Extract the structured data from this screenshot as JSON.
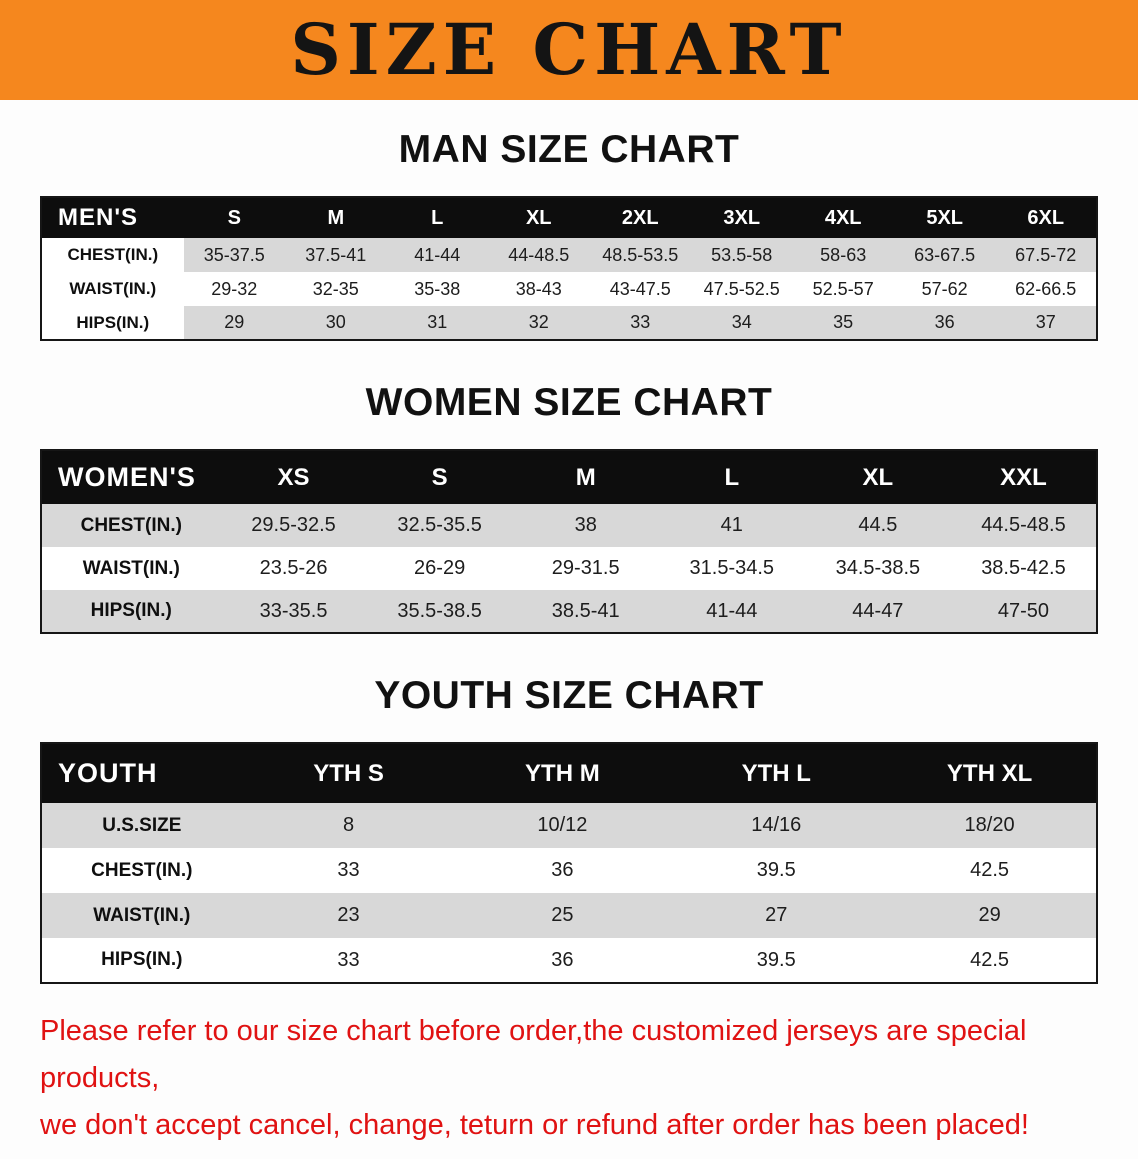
{
  "banner": {
    "title": "SIZE CHART",
    "bg_color": "#F5871E",
    "text_color": "#141414"
  },
  "sections": [
    {
      "id": "men",
      "heading": "MAN SIZE CHART",
      "header": [
        "MEN'S",
        "S",
        "M",
        "L",
        "XL",
        "2XL",
        "3XL",
        "4XL",
        "5XL",
        "6XL"
      ],
      "rows": [
        [
          "CHEST(IN.)",
          "35-37.5",
          "37.5-41",
          "41-44",
          "44-48.5",
          "48.5-53.5",
          "53.5-58",
          "58-63",
          "63-67.5",
          "67.5-72"
        ],
        [
          "WAIST(IN.)",
          "29-32",
          "32-35",
          "35-38",
          "38-43",
          "43-47.5",
          "47.5-52.5",
          "52.5-57",
          "57-62",
          "62-66.5"
        ],
        [
          "HIPS(IN.)",
          "29",
          "30",
          "31",
          "32",
          "33",
          "34",
          "35",
          "36",
          "37"
        ]
      ]
    },
    {
      "id": "women",
      "heading": "WOMEN SIZE CHART",
      "header": [
        "WOMEN'S",
        "XS",
        "S",
        "M",
        "L",
        "XL",
        "XXL"
      ],
      "rows": [
        [
          "CHEST(IN.)",
          "29.5-32.5",
          "32.5-35.5",
          "38",
          "41",
          "44.5",
          "44.5-48.5"
        ],
        [
          "WAIST(IN.)",
          "23.5-26",
          "26-29",
          "29-31.5",
          "31.5-34.5",
          "34.5-38.5",
          "38.5-42.5"
        ],
        [
          "HIPS(IN.)",
          "33-35.5",
          "35.5-38.5",
          "38.5-41",
          "41-44",
          "44-47",
          "47-50"
        ]
      ]
    },
    {
      "id": "youth",
      "heading": "YOUTH SIZE CHART",
      "header": [
        "YOUTH",
        "YTH S",
        "YTH M",
        "YTH L",
        "YTH XL"
      ],
      "rows": [
        [
          "U.S.SIZE",
          "8",
          "10/12",
          "14/16",
          "18/20"
        ],
        [
          "CHEST(IN.)",
          "33",
          "36",
          "39.5",
          "42.5"
        ],
        [
          "WAIST(IN.)",
          "23",
          "25",
          "27",
          "29"
        ],
        [
          "HIPS(IN.)",
          "33",
          "36",
          "39.5",
          "42.5"
        ]
      ]
    }
  ],
  "footer": {
    "lines": [
      "Please refer to our size chart before order,the customized jerseys are special products,",
      "we don't accept cancel, change, teturn or refund after order has been placed!"
    ],
    "text_color": "#E01212"
  }
}
